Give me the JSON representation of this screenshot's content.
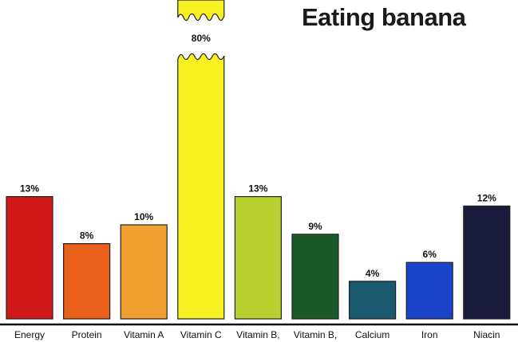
{
  "chart_data": {
    "type": "bar",
    "title": "Eating banana",
    "categories": [
      "Energy",
      "Protein",
      "Vitamin A",
      "Vitamin C",
      "Vitamin B,",
      "Vitamin B,",
      "Calcium",
      "Iron",
      "Niacin"
    ],
    "values": [
      13,
      8,
      10,
      80,
      13,
      9,
      4,
      6,
      12
    ],
    "value_labels": [
      "13%",
      "8%",
      "10%",
      "80%",
      "13%",
      "9%",
      "4%",
      "6%",
      "12%"
    ],
    "colors": [
      "#d01818",
      "#e8601a",
      "#f0a030",
      "#f8f020",
      "#b8d030",
      "#1a5a28",
      "#1a5a70",
      "#1a44c8",
      "#1a1a3a"
    ],
    "broken_bar": "Vitamin C",
    "xlabel": "",
    "ylabel": "",
    "unit": "%"
  }
}
